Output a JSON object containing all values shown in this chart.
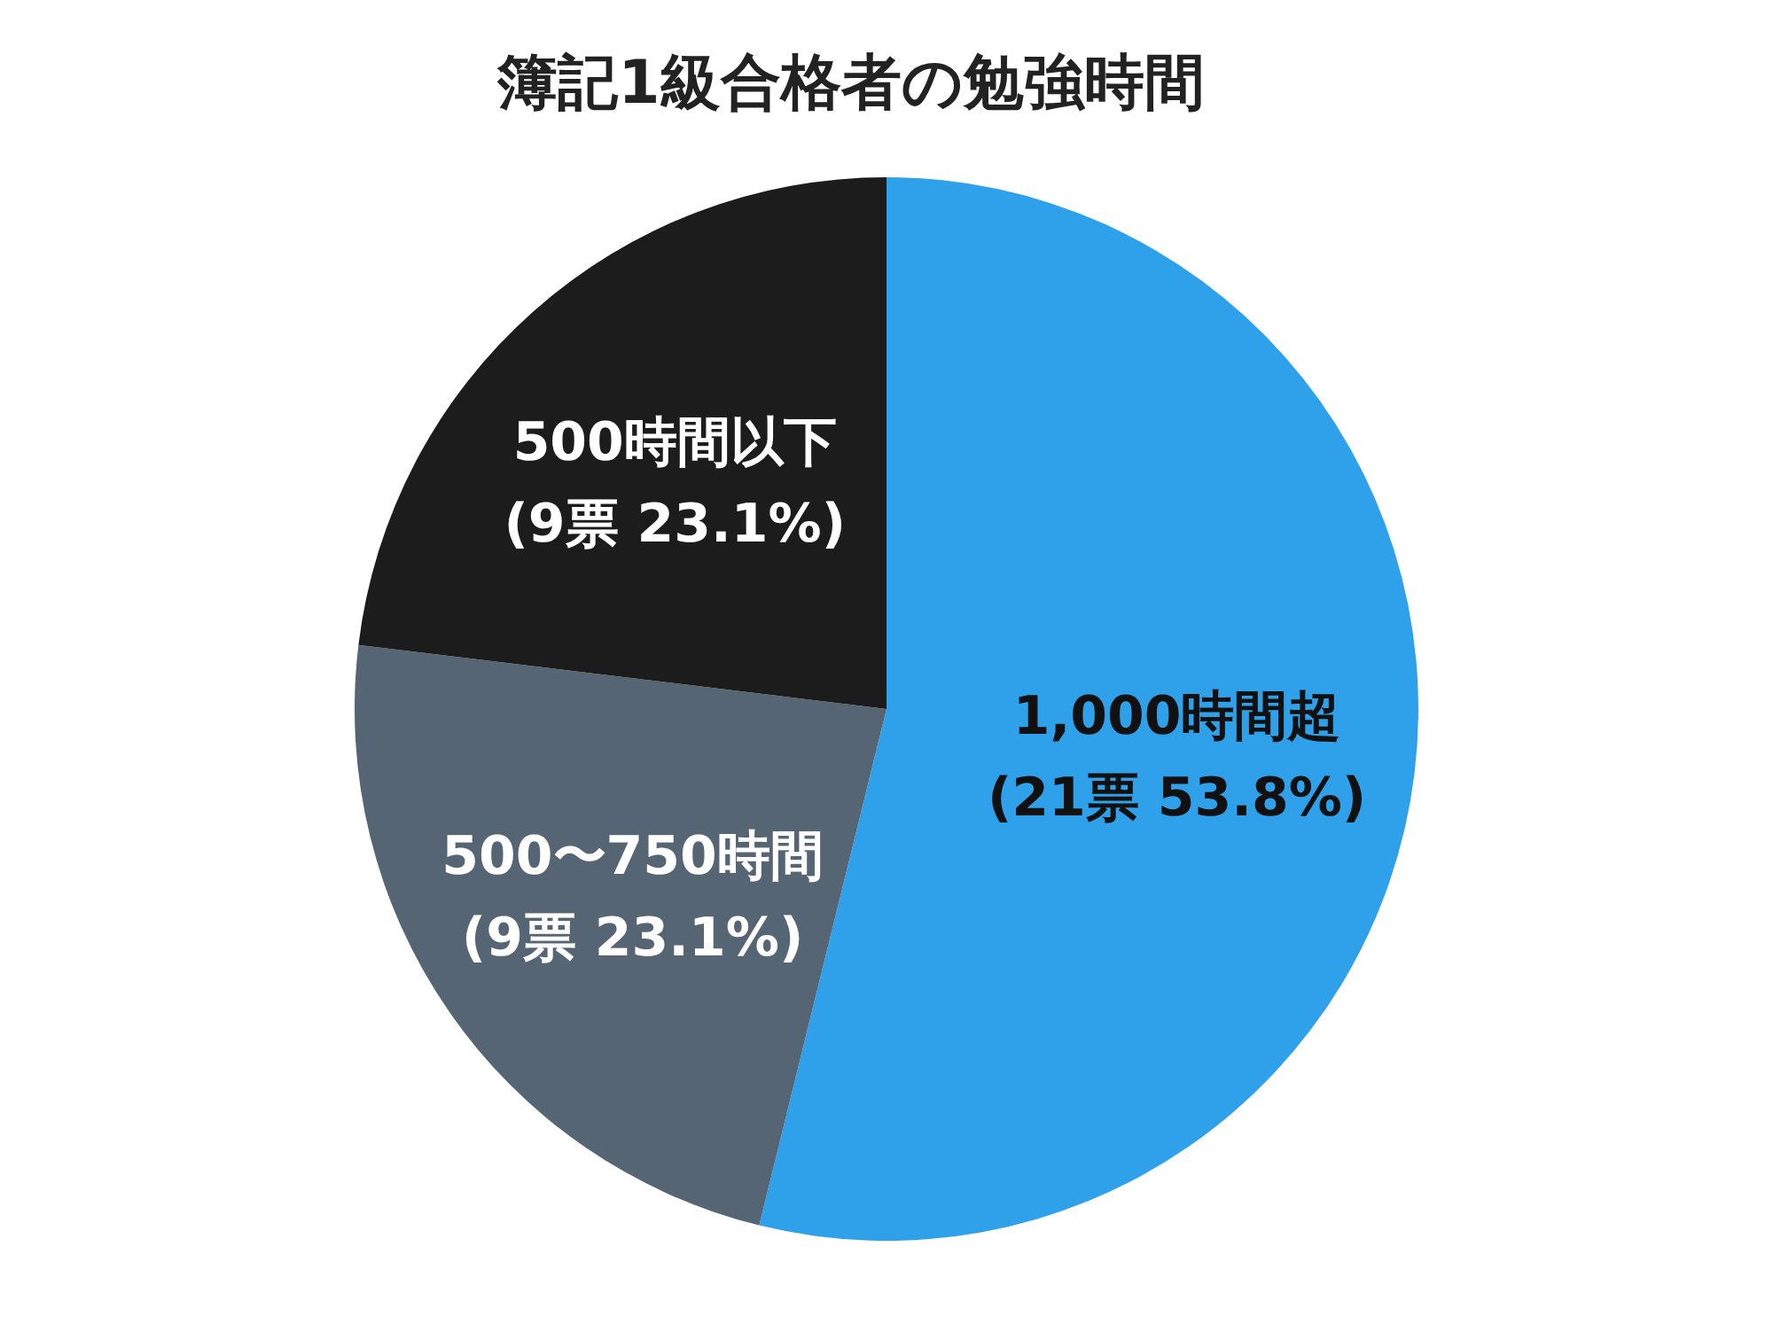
{
  "chart_data": {
    "type": "pie",
    "title": "簿記1級合格者の勉強時間",
    "categories": [
      "1,000時間超",
      "500〜750時間",
      "500時間以下"
    ],
    "values": [
      21,
      9,
      9
    ],
    "value_labels": [
      "(21票 53.8%)",
      "(9票 23.1%)",
      "(9票 23.1%)"
    ],
    "colors": [
      "#2ea1ea",
      "#566573",
      "#1c1c1c"
    ],
    "legend": false
  }
}
